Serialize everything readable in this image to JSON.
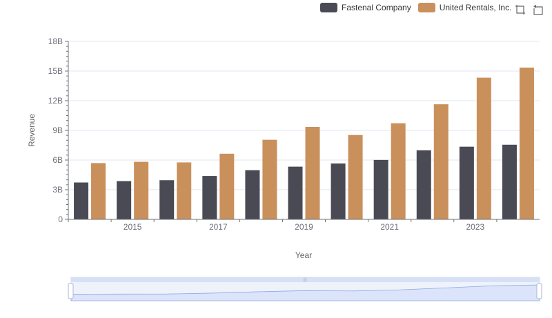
{
  "legend": {
    "items": [
      {
        "label": "Fastenal Company",
        "color": "#4a4a55"
      },
      {
        "label": "United Rentals, Inc.",
        "color": "#c9905c"
      }
    ]
  },
  "toolbox": {
    "icons": [
      "zoom-icon",
      "restore-icon"
    ]
  },
  "chart_data": {
    "type": "bar",
    "xlabel": "Year",
    "ylabel": "Revenue",
    "ylim": [
      0,
      18000000000
    ],
    "yticks": [
      "0",
      "3B",
      "6B",
      "9B",
      "12B",
      "15B",
      "18B"
    ],
    "xtick_labels": [
      "2015",
      "2017",
      "2019",
      "2021",
      "2023"
    ],
    "categories": [
      "2014",
      "2015",
      "2016",
      "2017",
      "2018",
      "2019",
      "2020",
      "2021",
      "2022",
      "2023",
      "2024"
    ],
    "series": [
      {
        "name": "Fastenal Company",
        "color": "#4a4a55",
        "values": [
          3730000000,
          3870000000,
          3960000000,
          4390000000,
          4970000000,
          5330000000,
          5650000000,
          6010000000,
          6980000000,
          7350000000,
          7550000000
        ]
      },
      {
        "name": "United Rentals, Inc.",
        "color": "#c9905c",
        "values": [
          5690000000,
          5820000000,
          5760000000,
          6640000000,
          8050000000,
          9350000000,
          8530000000,
          9720000000,
          11640000000,
          14330000000,
          15350000000
        ]
      }
    ],
    "grid": true,
    "legend_position": "top-right"
  }
}
